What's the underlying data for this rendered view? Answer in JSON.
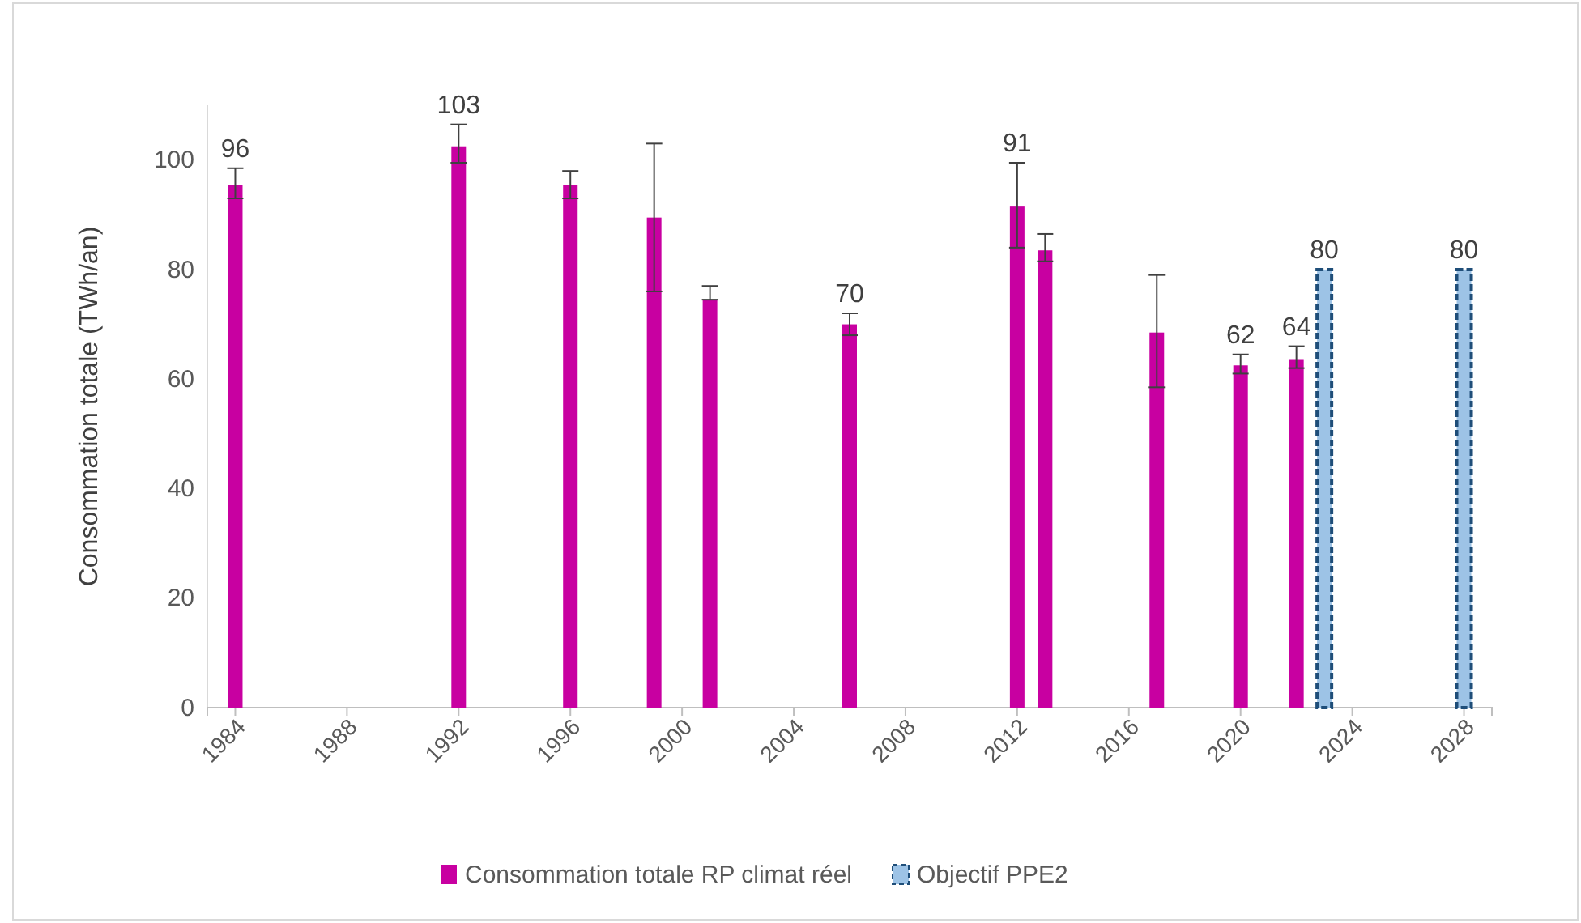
{
  "chart_data": {
    "type": "bar",
    "ylabel": "Consommation totale (TWh/an)",
    "xlim": [
      1983,
      2029
    ],
    "xticks": [
      1984,
      1988,
      1992,
      1996,
      2000,
      2004,
      2008,
      2012,
      2016,
      2020,
      2024,
      2028
    ],
    "ylim": [
      0,
      110
    ],
    "yticks": [
      0,
      20,
      40,
      60,
      80,
      100
    ],
    "legend": "bottom",
    "grid": false,
    "series": [
      {
        "name": "Consommation totale RP climat réel",
        "color": "#c800a1",
        "x": [
          1984,
          1992,
          1996,
          1999,
          2001,
          2006,
          2012,
          2013,
          2017,
          2020,
          2022
        ],
        "values": [
          95.5,
          102.5,
          95.5,
          89.5,
          74.5,
          70,
          91.5,
          83.5,
          68.5,
          62.5,
          63.5
        ],
        "value_labels": [
          "96",
          "103",
          null,
          null,
          null,
          "70",
          "91",
          null,
          null,
          "62",
          "64"
        ],
        "errors": [
          [
            93,
            98.5
          ],
          [
            99.5,
            106.5
          ],
          [
            93,
            98
          ],
          [
            76,
            103
          ],
          [
            74.5,
            77
          ],
          [
            68,
            72
          ],
          [
            84,
            99.5
          ],
          [
            81.5,
            86.5
          ],
          [
            58.5,
            79
          ],
          [
            61,
            64.5
          ],
          [
            62,
            66
          ]
        ]
      },
      {
        "name": "Objectif PPE2",
        "color": "#9dc3e6",
        "line_style": "dashed",
        "x": [
          2023,
          2028
        ],
        "values": [
          80,
          80
        ],
        "value_labels": [
          "80",
          "80"
        ]
      }
    ]
  }
}
